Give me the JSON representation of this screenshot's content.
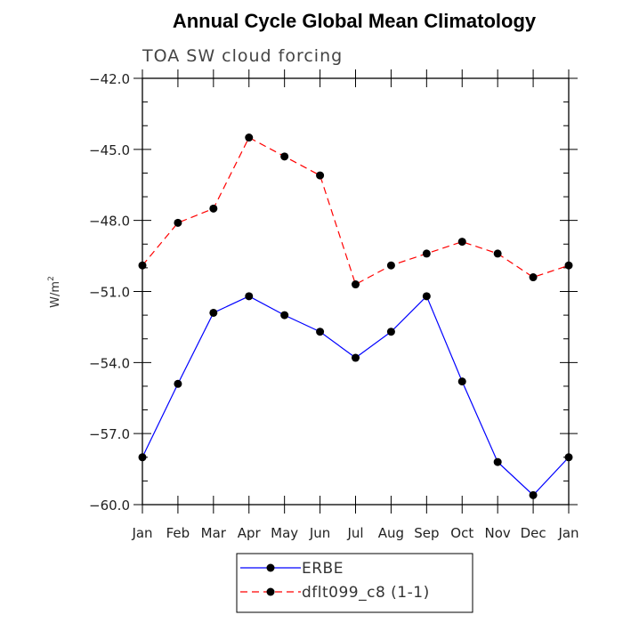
{
  "chart_data": {
    "type": "line",
    "title": "Annual Cycle Global Mean Climatology",
    "subtitle": "TOA SW cloud forcing",
    "xlabel": "",
    "ylabel": "W/m",
    "ylabel_superscript": "2",
    "categories": [
      "Jan",
      "Feb",
      "Mar",
      "Apr",
      "May",
      "Jun",
      "Jul",
      "Aug",
      "Sep",
      "Oct",
      "Nov",
      "Dec",
      "Jan"
    ],
    "ylim": [
      -60.0,
      -42.0
    ],
    "yticks": [
      "-42.0",
      "-45.0",
      "-48.0",
      "-51.0",
      "-54.0",
      "-57.0",
      "-60.0"
    ],
    "ytick_values": [
      -42,
      -45,
      -48,
      -51,
      -54,
      -57,
      -60
    ],
    "grid": false,
    "legend_position": "bottom",
    "series": [
      {
        "name": "ERBE",
        "color": "#0000ff",
        "dash": "solid",
        "values": [
          -58.0,
          -54.9,
          -51.9,
          -51.2,
          -52.0,
          -52.7,
          -53.8,
          -52.7,
          -51.2,
          -54.8,
          -58.2,
          -59.6,
          -58.0
        ]
      },
      {
        "name": "dflt099_c8 (1-1)",
        "color": "#ff0000",
        "dash": "dashed",
        "values": [
          -49.9,
          -48.1,
          -47.5,
          -44.5,
          -45.3,
          -46.1,
          -50.7,
          -49.9,
          -49.4,
          -48.9,
          -49.4,
          -50.4,
          -49.9
        ]
      }
    ]
  }
}
